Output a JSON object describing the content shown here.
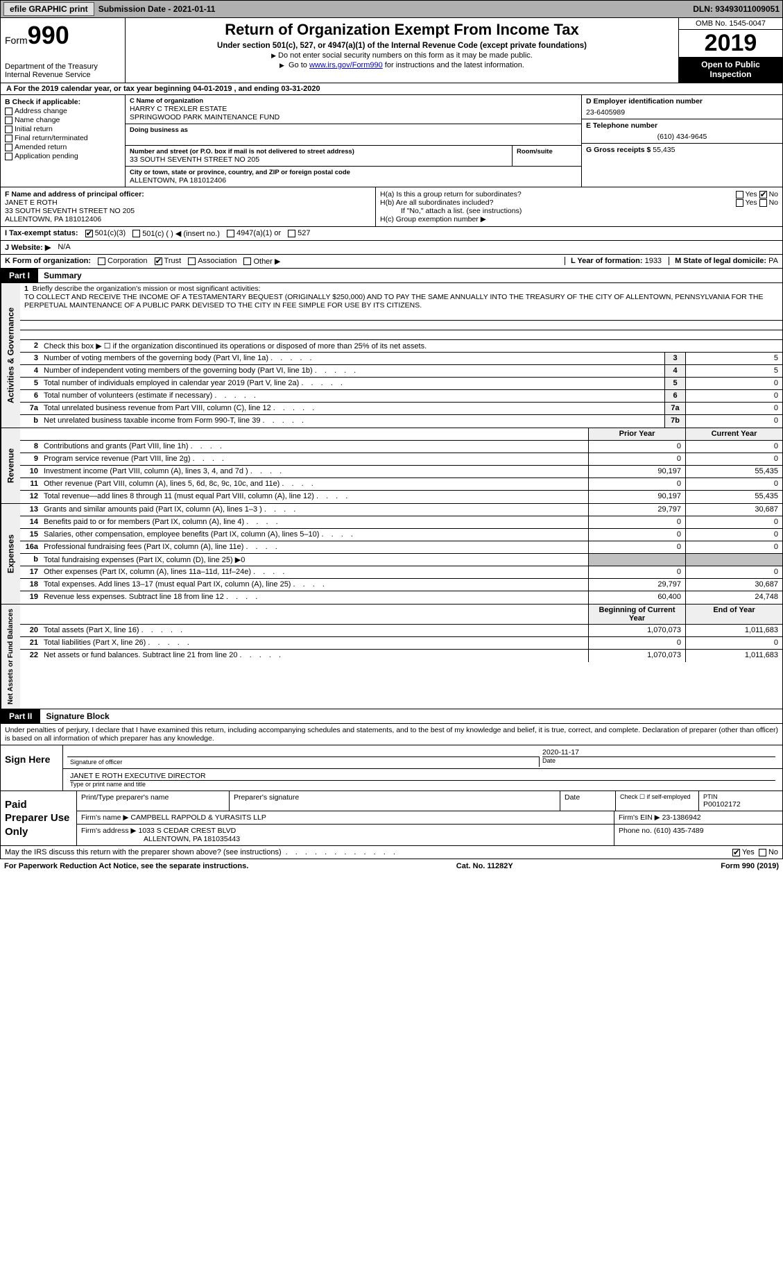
{
  "topbar": {
    "efile": "efile GRAPHIC print",
    "submission_label": "Submission Date - ",
    "submission_date": "2021-01-11",
    "dln_label": "DLN: ",
    "dln": "93493011009051"
  },
  "header": {
    "form_prefix": "Form",
    "form_number": "990",
    "dept1": "Department of the Treasury",
    "dept2": "Internal Revenue Service",
    "title": "Return of Organization Exempt From Income Tax",
    "subtitle": "Under section 501(c), 527, or 4947(a)(1) of the Internal Revenue Code (except private foundations)",
    "note1": "Do not enter social security numbers on this form as it may be made public.",
    "note2_pre": "Go to ",
    "note2_link": "www.irs.gov/Form990",
    "note2_post": " for instructions and the latest information.",
    "omb": "OMB No. 1545-0047",
    "year": "2019",
    "open_public": "Open to Public Inspection"
  },
  "period": {
    "text_a": "A For the 2019 calendar year, or tax year beginning ",
    "begin": "04-01-2019",
    "text_b": " , and ending ",
    "end": "03-31-2020"
  },
  "colB": {
    "title": "B Check if applicable:",
    "items": [
      "Address change",
      "Name change",
      "Initial return",
      "Final return/terminated",
      "Amended return",
      "Application pending"
    ]
  },
  "colC": {
    "name_lbl": "C Name of organization",
    "name1": "HARRY C TREXLER ESTATE",
    "name2": "SPRINGWOOD PARK MAINTENANCE FUND",
    "dba_lbl": "Doing business as",
    "addr_lbl": "Number and street (or P.O. box if mail is not delivered to street address)",
    "room_lbl": "Room/suite",
    "addr": "33 SOUTH SEVENTH STREET NO 205",
    "city_lbl": "City or town, state or province, country, and ZIP or foreign postal code",
    "city": "ALLENTOWN, PA  181012406"
  },
  "colD": {
    "ein_lbl": "D Employer identification number",
    "ein": "23-6405989",
    "phone_lbl": "E Telephone number",
    "phone": "(610) 434-9645",
    "gross_lbl": "G Gross receipts $ ",
    "gross": "55,435"
  },
  "colF": {
    "lbl": "F Name and address of principal officer:",
    "name": "JANET E ROTH",
    "addr1": "33 SOUTH SEVENTH STREET NO 205",
    "addr2": "ALLENTOWN, PA  181012406"
  },
  "colH": {
    "ha": "H(a)  Is this a group return for subordinates?",
    "hb": "H(b)  Are all subordinates included?",
    "hb_note": "If \"No,\" attach a list. (see instructions)",
    "hc": "H(c)  Group exemption number ▶",
    "yes": "Yes",
    "no": "No"
  },
  "lineI": {
    "lbl": "I  Tax-exempt status:",
    "opts": [
      "501(c)(3)",
      "501(c) (  ) ◀ (insert no.)",
      "4947(a)(1) or",
      "527"
    ]
  },
  "lineJ": {
    "lbl": "J  Website: ▶",
    "val": "N/A"
  },
  "lineK": {
    "lbl": "K Form of organization:",
    "opts": [
      "Corporation",
      "Trust",
      "Association",
      "Other ▶"
    ],
    "year_lbl": "L Year of formation: ",
    "year": "1933",
    "state_lbl": "M State of legal domicile: ",
    "state": "PA"
  },
  "partI": {
    "tab": "Part I",
    "title": "Summary"
  },
  "mission": {
    "num": "1",
    "lbl": "Briefly describe the organization's mission or most significant activities:",
    "text": "TO COLLECT AND RECEIVE THE INCOME OF A TESTAMENTARY BEQUEST (ORIGINALLY $250,000) AND TO PAY THE SAME ANNUALLY INTO THE TREASURY OF THE CITY OF ALLENTOWN, PENNSYLVANIA FOR THE PERPETUAL MAINTENANCE OF A PUBLIC PARK DEVISED TO THE CITY IN FEE SIMPLE FOR USE BY ITS CITIZENS."
  },
  "governance": {
    "vtab": "Activities & Governance",
    "line2": "Check this box ▶ ☐  if the organization discontinued its operations or disposed of more than 25% of its net assets.",
    "rows": [
      {
        "n": "3",
        "d": "Number of voting members of the governing body (Part VI, line 1a)",
        "box": "3",
        "v": "5"
      },
      {
        "n": "4",
        "d": "Number of independent voting members of the governing body (Part VI, line 1b)",
        "box": "4",
        "v": "5"
      },
      {
        "n": "5",
        "d": "Total number of individuals employed in calendar year 2019 (Part V, line 2a)",
        "box": "5",
        "v": "0"
      },
      {
        "n": "6",
        "d": "Total number of volunteers (estimate if necessary)",
        "box": "6",
        "v": "0"
      },
      {
        "n": "7a",
        "d": "Total unrelated business revenue from Part VIII, column (C), line 12",
        "box": "7a",
        "v": "0"
      },
      {
        "n": "b",
        "d": "Net unrelated business taxable income from Form 990-T, line 39",
        "box": "7b",
        "v": "0"
      }
    ]
  },
  "revenue": {
    "vtab": "Revenue",
    "hdr_py": "Prior Year",
    "hdr_cy": "Current Year",
    "rows": [
      {
        "n": "8",
        "d": "Contributions and grants (Part VIII, line 1h)",
        "py": "0",
        "cy": "0"
      },
      {
        "n": "9",
        "d": "Program service revenue (Part VIII, line 2g)",
        "py": "0",
        "cy": "0"
      },
      {
        "n": "10",
        "d": "Investment income (Part VIII, column (A), lines 3, 4, and 7d )",
        "py": "90,197",
        "cy": "55,435"
      },
      {
        "n": "11",
        "d": "Other revenue (Part VIII, column (A), lines 5, 6d, 8c, 9c, 10c, and 11e)",
        "py": "0",
        "cy": "0"
      },
      {
        "n": "12",
        "d": "Total revenue—add lines 8 through 11 (must equal Part VIII, column (A), line 12)",
        "py": "90,197",
        "cy": "55,435"
      }
    ]
  },
  "expenses": {
    "vtab": "Expenses",
    "rows": [
      {
        "n": "13",
        "d": "Grants and similar amounts paid (Part IX, column (A), lines 1–3 )",
        "py": "29,797",
        "cy": "30,687"
      },
      {
        "n": "14",
        "d": "Benefits paid to or for members (Part IX, column (A), line 4)",
        "py": "0",
        "cy": "0"
      },
      {
        "n": "15",
        "d": "Salaries, other compensation, employee benefits (Part IX, column (A), lines 5–10)",
        "py": "0",
        "cy": "0"
      },
      {
        "n": "16a",
        "d": "Professional fundraising fees (Part IX, column (A), line 11e)",
        "py": "0",
        "cy": "0"
      },
      {
        "n": "b",
        "d": "Total fundraising expenses (Part IX, column (D), line 25) ▶0",
        "py": "",
        "cy": "",
        "shade": true
      },
      {
        "n": "17",
        "d": "Other expenses (Part IX, column (A), lines 11a–11d, 11f–24e)",
        "py": "0",
        "cy": "0"
      },
      {
        "n": "18",
        "d": "Total expenses. Add lines 13–17 (must equal Part IX, column (A), line 25)",
        "py": "29,797",
        "cy": "30,687"
      },
      {
        "n": "19",
        "d": "Revenue less expenses. Subtract line 18 from line 12",
        "py": "60,400",
        "cy": "24,748"
      }
    ]
  },
  "netassets": {
    "vtab": "Net Assets or Fund Balances",
    "hdr_py": "Beginning of Current Year",
    "hdr_cy": "End of Year",
    "rows": [
      {
        "n": "20",
        "d": "Total assets (Part X, line 16)",
        "py": "1,070,073",
        "cy": "1,011,683"
      },
      {
        "n": "21",
        "d": "Total liabilities (Part X, line 26)",
        "py": "0",
        "cy": "0"
      },
      {
        "n": "22",
        "d": "Net assets or fund balances. Subtract line 21 from line 20",
        "py": "1,070,073",
        "cy": "1,011,683"
      }
    ]
  },
  "partII": {
    "tab": "Part II",
    "title": "Signature Block"
  },
  "sig": {
    "penalty": "Under penalties of perjury, I declare that I have examined this return, including accompanying schedules and statements, and to the best of my knowledge and belief, it is true, correct, and complete. Declaration of preparer (other than officer) is based on all information of which preparer has any knowledge.",
    "sign_here": "Sign Here",
    "sig_officer_lbl": "Signature of officer",
    "date_lbl": "Date",
    "date": "2020-11-17",
    "name": "JANET E ROTH  EXECUTIVE DIRECTOR",
    "name_lbl": "Type or print name and title"
  },
  "prep": {
    "title": "Paid Preparer Use Only",
    "h1": "Print/Type preparer's name",
    "h2": "Preparer's signature",
    "h3": "Date",
    "h4_a": "Check ☐ if self-employed",
    "h4_b": "PTIN",
    "ptin": "P00102172",
    "firm_name_lbl": "Firm's name    ▶",
    "firm_name": "CAMPBELL RAPPOLD & YURASITS LLP",
    "firm_ein_lbl": "Firm's EIN ▶ ",
    "firm_ein": "23-1386942",
    "firm_addr_lbl": "Firm's address ▶",
    "firm_addr1": "1033 S CEDAR CREST BLVD",
    "firm_addr2": "ALLENTOWN, PA  181035443",
    "phone_lbl": "Phone no. ",
    "phone": "(610) 435-7489"
  },
  "footer": {
    "discuss": "May the IRS discuss this return with the preparer shown above? (see instructions)",
    "yes": "Yes",
    "no": "No",
    "pra": "For Paperwork Reduction Act Notice, see the separate instructions.",
    "cat": "Cat. No. 11282Y",
    "form": "Form 990 (2019)"
  }
}
